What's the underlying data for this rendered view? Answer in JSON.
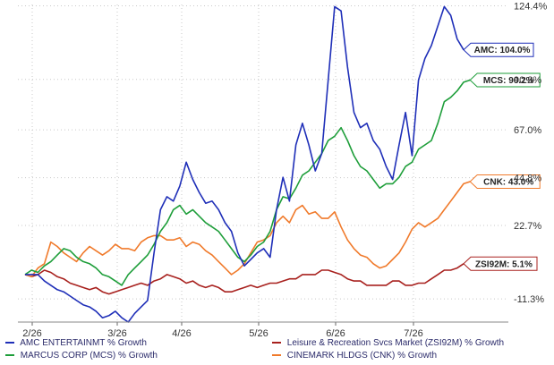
{
  "chart_data": {
    "type": "line",
    "title": "",
    "xlabel": "",
    "ylabel": "",
    "x_ticks": [
      "2/26",
      "3/26",
      "4/26",
      "5/26",
      "6/26",
      "7/26"
    ],
    "y_ticks": [
      "124.4%",
      "90.3%",
      "67.0%",
      "44.8%",
      "22.7%",
      "-11.3%"
    ],
    "ylim": [
      -22,
      125
    ],
    "grid": true,
    "legend_position": "bottom",
    "series": [
      {
        "name": "AMC ENTERTAINMT % Growth",
        "color": "#1f2fb8",
        "end_label": "AMC: 104.0%",
        "values": [
          0,
          0,
          0,
          -3,
          -5,
          -7,
          -8,
          -10,
          -12,
          -14,
          -15,
          -17,
          -20,
          -19,
          -17,
          -20,
          -22,
          -18,
          -15,
          -12,
          10,
          30,
          36,
          34,
          41,
          52,
          44,
          38,
          33,
          34,
          30,
          24,
          20,
          10,
          4,
          7,
          10,
          12,
          8,
          30,
          45,
          34,
          60,
          70,
          60,
          48,
          56,
          90,
          124,
          122,
          96,
          75,
          68,
          70,
          62,
          58,
          50,
          44,
          60,
          75,
          55,
          90,
          100,
          106,
          115,
          124,
          120,
          109,
          104
        ]
      },
      {
        "name": "MARCUS CORP (MCS) % Growth",
        "color": "#1e9e3a",
        "end_label": "MCS: 90.2%",
        "values": [
          0,
          2,
          1,
          4,
          6,
          9,
          12,
          11,
          8,
          6,
          5,
          3,
          0,
          -1,
          -3,
          -5,
          0,
          3,
          6,
          9,
          14,
          20,
          24,
          30,
          32,
          28,
          30,
          27,
          24,
          22,
          20,
          16,
          12,
          8,
          6,
          9,
          13,
          15,
          20,
          30,
          36,
          35,
          40,
          46,
          48,
          52,
          56,
          62,
          64,
          68,
          62,
          55,
          50,
          48,
          44,
          40,
          42,
          42,
          45,
          50,
          52,
          58,
          60,
          62,
          70,
          80,
          82,
          85,
          89,
          90
        ]
      },
      {
        "name": "Leisure & Recreation Svcs Market (ZSI92M) % Growth",
        "color": "#a8211e",
        "end_label": "ZSI92M: 5.1%",
        "values": [
          0,
          -1,
          0,
          2,
          1,
          -1,
          -2,
          -4,
          -5,
          -6,
          -7,
          -6,
          -8,
          -9,
          -8,
          -7,
          -6,
          -5,
          -4,
          -5,
          -3,
          -2,
          0,
          -1,
          -2,
          -4,
          -3,
          -5,
          -6,
          -5,
          -6,
          -8,
          -8,
          -7,
          -6,
          -5,
          -6,
          -5,
          -4,
          -4,
          -3,
          -2,
          -2,
          0,
          0,
          0,
          2,
          2,
          1,
          0,
          -2,
          -3,
          -3,
          -5,
          -5,
          -5,
          -5,
          -3,
          -3,
          -5,
          -5,
          -4,
          -4,
          -2,
          0,
          2,
          2,
          3,
          5
        ]
      },
      {
        "name": "CINEMARK HLDGS (CNK) % Growth",
        "color": "#f07a2b",
        "end_label": "CNK: 43.0%",
        "values": [
          0,
          -1,
          3,
          5,
          15,
          13,
          10,
          8,
          6,
          10,
          13,
          11,
          9,
          11,
          14,
          12,
          12,
          11,
          15,
          17,
          18,
          18,
          16,
          16,
          17,
          13,
          15,
          14,
          11,
          9,
          6,
          3,
          0,
          2,
          5,
          10,
          15,
          16,
          18,
          24,
          27,
          24,
          30,
          32,
          28,
          29,
          26,
          26,
          29,
          22,
          16,
          12,
          9,
          8,
          5,
          3,
          4,
          7,
          10,
          15,
          21,
          24,
          22,
          24,
          26,
          30,
          34,
          38,
          42,
          43
        ]
      }
    ]
  }
}
